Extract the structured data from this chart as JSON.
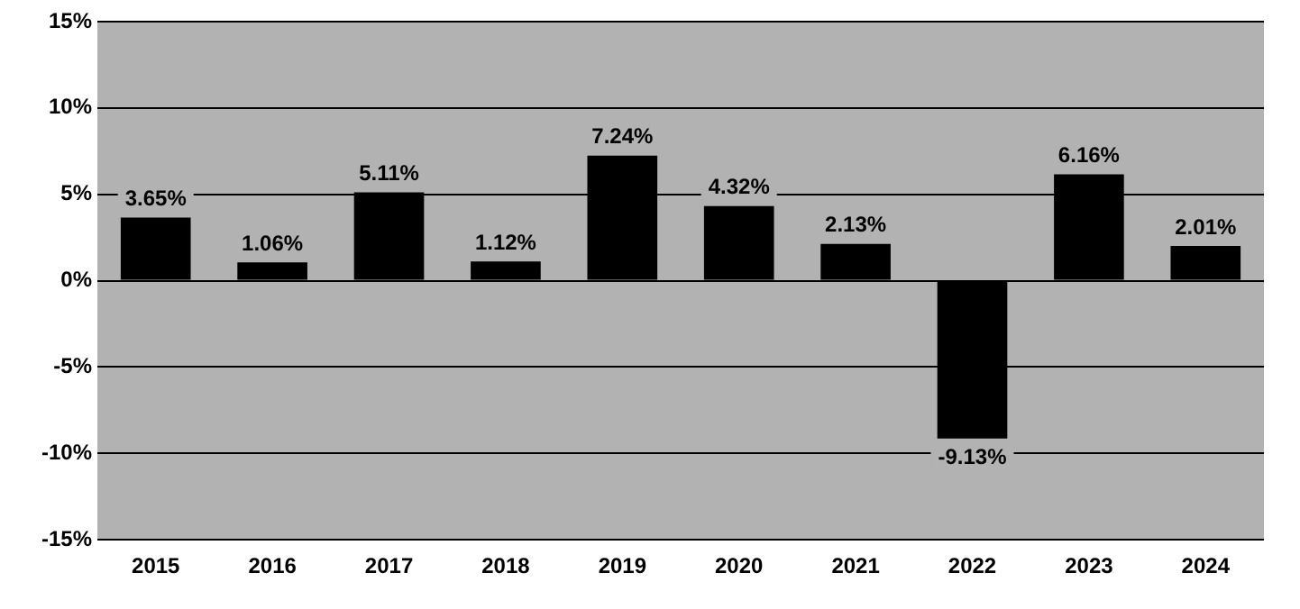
{
  "chart_data": {
    "type": "bar",
    "categories": [
      "2015",
      "2016",
      "2017",
      "2018",
      "2019",
      "2020",
      "2021",
      "2022",
      "2023",
      "2024"
    ],
    "values": [
      3.65,
      1.06,
      5.11,
      1.12,
      7.24,
      4.32,
      2.13,
      -9.13,
      6.16,
      2.01
    ],
    "value_labels": [
      "3.65%",
      "1.06%",
      "5.11%",
      "1.12%",
      "7.24%",
      "4.32%",
      "2.13%",
      "-9.13%",
      "6.16%",
      "2.01%"
    ],
    "color": "#000000",
    "ylim": [
      -15,
      15
    ],
    "yticks": [
      {
        "value": -15,
        "label": "-15%"
      },
      {
        "value": -10,
        "label": "-10%"
      },
      {
        "value": -5,
        "label": "-5%"
      },
      {
        "value": 0,
        "label": "0%"
      },
      {
        "value": 5,
        "label": "5%"
      },
      {
        "value": 10,
        "label": "10%"
      },
      {
        "value": 15,
        "label": "15%"
      }
    ],
    "grid": "y",
    "legend": false
  }
}
